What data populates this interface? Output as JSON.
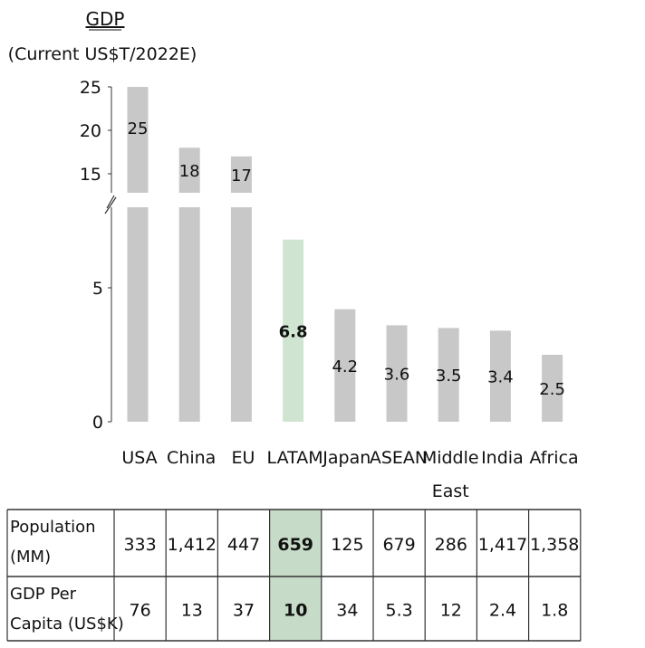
{
  "chart_data": {
    "type": "bar",
    "title": "GDP",
    "subtitle": "(Current US$T/2022E)",
    "categories": [
      "USA",
      "China",
      "EU",
      "LATAM",
      "Japan",
      "ASEAN",
      "Middle East",
      "India",
      "Africa"
    ],
    "category_lines": [
      [
        "USA"
      ],
      [
        "China"
      ],
      [
        "EU"
      ],
      [
        "LATAM"
      ],
      [
        "Japan"
      ],
      [
        "ASEAN"
      ],
      [
        "Middle",
        "East"
      ],
      [
        "India"
      ],
      [
        "Africa"
      ]
    ],
    "values": [
      25,
      18,
      17,
      6.8,
      4.2,
      3.6,
      3.5,
      3.4,
      2.5
    ],
    "value_labels": [
      "25",
      "18",
      "17",
      "6.8",
      "4.2",
      "3.6",
      "3.5",
      "3.4",
      "2.5"
    ],
    "highlight": "LATAM",
    "axis_break": true,
    "yticks_lower": [
      "0",
      "5"
    ],
    "yticks_upper": [
      "15",
      "20",
      "25"
    ],
    "colors": {
      "bar": "#c8c8c8",
      "highlight": "#cfe5d1",
      "table_highlight": "#c6dcc8"
    },
    "table": {
      "rows": [
        {
          "label": [
            "Population",
            "(MM)"
          ],
          "values": [
            "333",
            "1,412",
            "447",
            "659",
            "125",
            "679",
            "286",
            "1,417",
            "1,358"
          ]
        },
        {
          "label": [
            "GDP Per",
            "Capita (US$K)"
          ],
          "values": [
            "76",
            "13",
            "37",
            "10",
            "34",
            "5.3",
            "12",
            "2.4",
            "1.8"
          ]
        }
      ]
    }
  }
}
